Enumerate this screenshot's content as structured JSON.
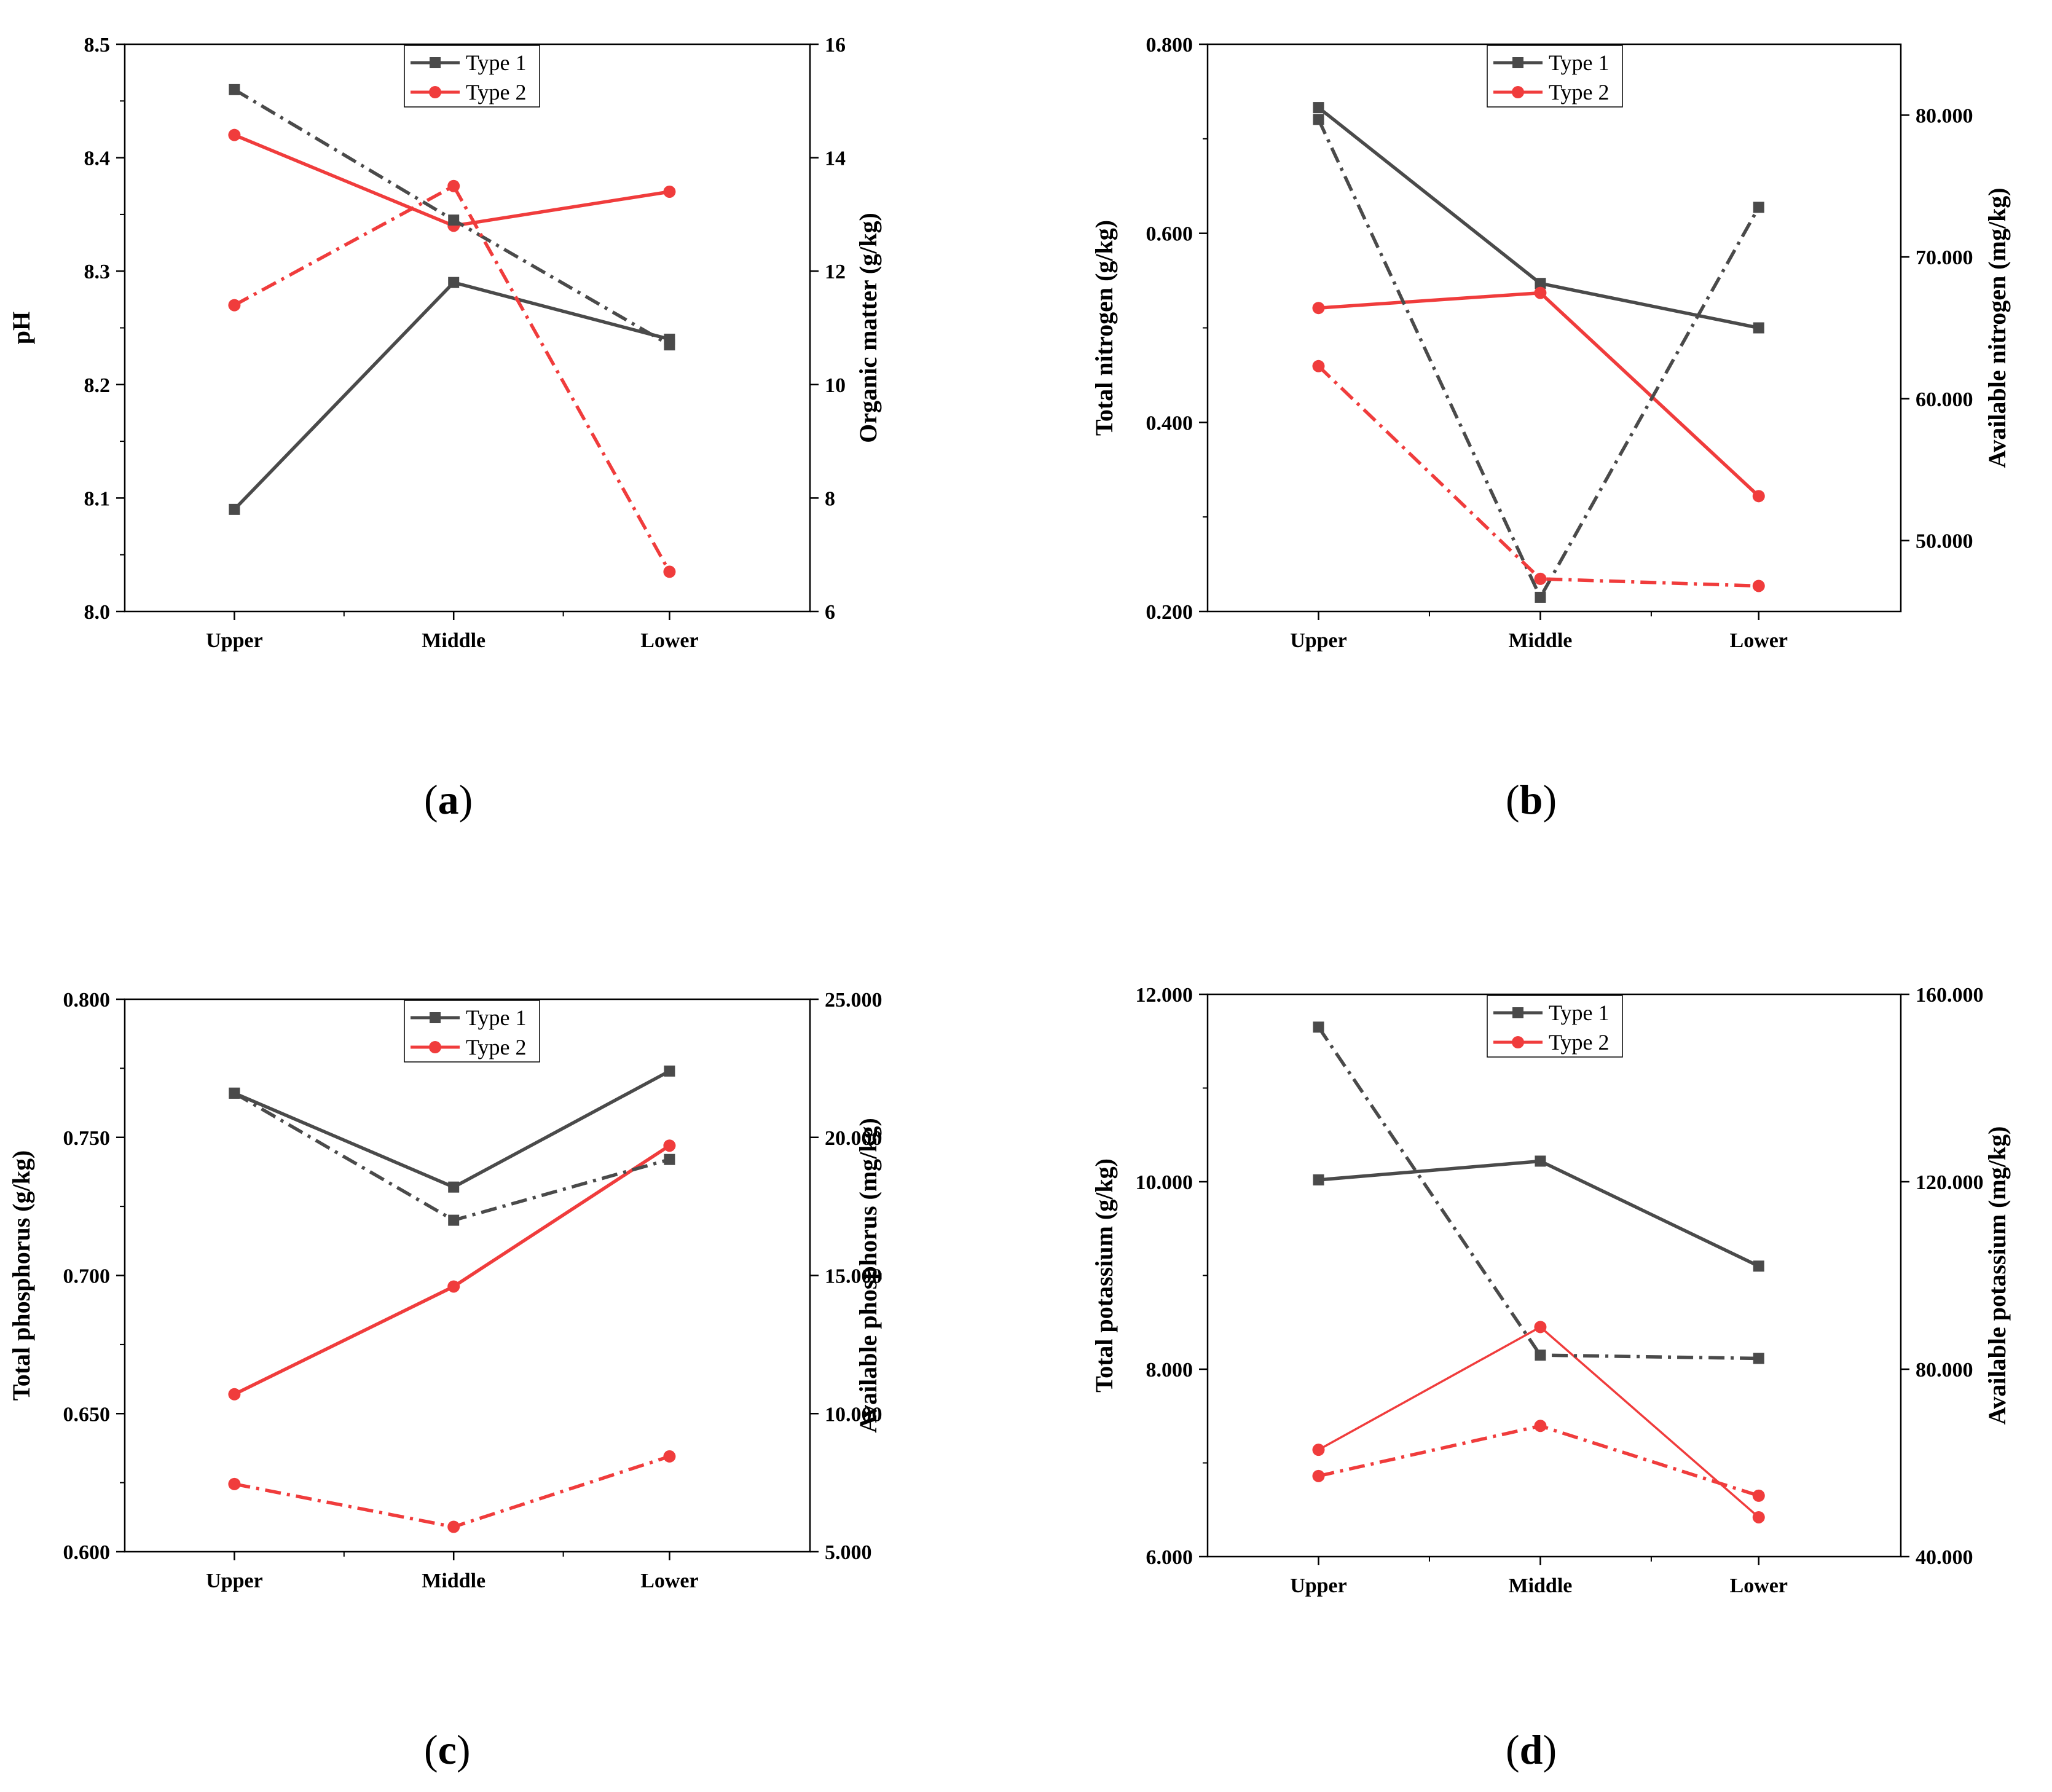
{
  "figure": {
    "panels": [
      {
        "label_open": "(",
        "label_letter": "a",
        "label_close": ")"
      },
      {
        "label_open": "(",
        "label_letter": "b",
        "label_close": ")"
      },
      {
        "label_open": "(",
        "label_letter": "c",
        "label_close": ")"
      },
      {
        "label_open": "(",
        "label_letter": "d",
        "label_close": ")"
      }
    ]
  },
  "colors": {
    "type1": "#4a4a4a",
    "type2": "#f03c3c",
    "axis": "#000000"
  },
  "chart_data": [
    {
      "type": "line",
      "panel": "a",
      "categories": [
        "Upper",
        "Middle",
        "Lower"
      ],
      "left_axis": {
        "label": "pH",
        "range": [
          8.0,
          8.5
        ],
        "ticks": [
          "8.0",
          "8.1",
          "8.2",
          "8.3",
          "8.4",
          "8.5"
        ]
      },
      "right_axis": {
        "label": "Organic matter (g/kg)",
        "range": [
          6,
          16
        ],
        "ticks": [
          "6",
          "8",
          "10",
          "12",
          "14",
          "16"
        ]
      },
      "legend": {
        "position": "top-center",
        "entries": [
          "Type 1",
          "Type 2"
        ]
      },
      "series": [
        {
          "name": "Type 1",
          "axis": "left",
          "style": "solid",
          "marker": "square",
          "values": [
            8.09,
            8.29,
            8.24
          ]
        },
        {
          "name": "Type 2",
          "axis": "left",
          "style": "solid",
          "marker": "circle",
          "values": [
            8.42,
            8.34,
            8.37
          ]
        },
        {
          "name": "Type 1",
          "axis": "right",
          "style": "dashdot",
          "marker": "square",
          "values": [
            15.2,
            12.9,
            10.7
          ]
        },
        {
          "name": "Type 2",
          "axis": "right",
          "style": "dashdot",
          "marker": "circle",
          "values": [
            11.4,
            13.5,
            6.7
          ]
        }
      ]
    },
    {
      "type": "line",
      "panel": "b",
      "categories": [
        "Upper",
        "Middle",
        "Lower"
      ],
      "left_axis": {
        "label": "Total nitrogen (g/kg)",
        "range": [
          0.2,
          0.8
        ],
        "ticks": [
          "0.200",
          "0.400",
          "0.600",
          "0.800"
        ]
      },
      "right_axis": {
        "label": "Available nitrogen (mg/kg)",
        "range": [
          45.0,
          85.0
        ],
        "ticks": [
          "50.000",
          "60.000",
          "70.000",
          "80.000"
        ]
      },
      "legend": {
        "position": "top-center",
        "entries": [
          "Type 1",
          "Type 2"
        ]
      },
      "series": [
        {
          "name": "Type 1",
          "axis": "left",
          "style": "solid",
          "marker": "square",
          "values": [
            0.733,
            0.547,
            0.5
          ]
        },
        {
          "name": "Type 2",
          "axis": "left",
          "style": "solid",
          "marker": "circle",
          "values": [
            0.521,
            0.537,
            0.322
          ]
        },
        {
          "name": "Type 1",
          "axis": "right",
          "style": "dashdot",
          "marker": "square",
          "values": [
            79.7,
            46.0,
            73.5
          ]
        },
        {
          "name": "Type 2",
          "axis": "right",
          "style": "dashdot",
          "marker": "circle",
          "values": [
            62.3,
            47.3,
            46.8
          ]
        }
      ]
    },
    {
      "type": "line",
      "panel": "c",
      "categories": [
        "Upper",
        "Middle",
        "Lower"
      ],
      "left_axis": {
        "label": "Total phosphorus (g/kg)",
        "range": [
          0.6,
          0.8
        ],
        "ticks": [
          "0.600",
          "0.650",
          "0.700",
          "0.750",
          "0.800"
        ]
      },
      "right_axis": {
        "label": "Available phosphorus (mg/kg)",
        "range": [
          5.0,
          25.0
        ],
        "ticks": [
          "5.000",
          "10.000",
          "15.000",
          "20.000",
          "25.000"
        ]
      },
      "legend": {
        "position": "top-center",
        "entries": [
          "Type 1",
          "Type 2"
        ]
      },
      "series": [
        {
          "name": "Type 1",
          "axis": "left",
          "style": "solid",
          "marker": "square",
          "values": [
            0.766,
            0.732,
            0.774
          ]
        },
        {
          "name": "Type 2",
          "axis": "left",
          "style": "solid",
          "marker": "circle",
          "values": [
            0.657,
            0.696,
            0.747
          ]
        },
        {
          "name": "Type 1",
          "axis": "right",
          "style": "dashdot",
          "marker": "square",
          "values": [
            21.6,
            17.0,
            19.2
          ]
        },
        {
          "name": "Type 2",
          "axis": "right",
          "style": "dashdot",
          "marker": "circle",
          "values": [
            7.45,
            5.9,
            8.45
          ]
        }
      ]
    },
    {
      "type": "line",
      "panel": "d",
      "categories": [
        "Upper",
        "Middle",
        "Lower"
      ],
      "left_axis": {
        "label": "Total potassium (g/kg)",
        "range": [
          6.0,
          12.0
        ],
        "ticks": [
          "6.000",
          "8.000",
          "10.000",
          "12.000"
        ]
      },
      "right_axis": {
        "label": "Available potassium (mg/kg)",
        "range": [
          40.0,
          160.0
        ],
        "ticks": [
          "40.000",
          "80.000",
          "120.000",
          "160.000"
        ]
      },
      "legend": {
        "position": "top-center",
        "entries": [
          "Type 1",
          "Type 2"
        ]
      },
      "series": [
        {
          "name": "Type 1",
          "axis": "left",
          "style": "solid",
          "marker": "square",
          "values": [
            10.02,
            10.22,
            9.1
          ]
        },
        {
          "name": "Type 2",
          "axis": "left",
          "style": "solid-thin",
          "marker": "circle",
          "values": [
            7.14,
            8.45,
            6.42
          ]
        },
        {
          "name": "Type 1",
          "axis": "right",
          "style": "dashdot",
          "marker": "square",
          "values": [
            153.0,
            83.0,
            82.3
          ]
        },
        {
          "name": "Type 2",
          "axis": "right",
          "style": "dashdot",
          "marker": "circle",
          "values": [
            57.2,
            67.9,
            53.0
          ]
        }
      ]
    }
  ]
}
